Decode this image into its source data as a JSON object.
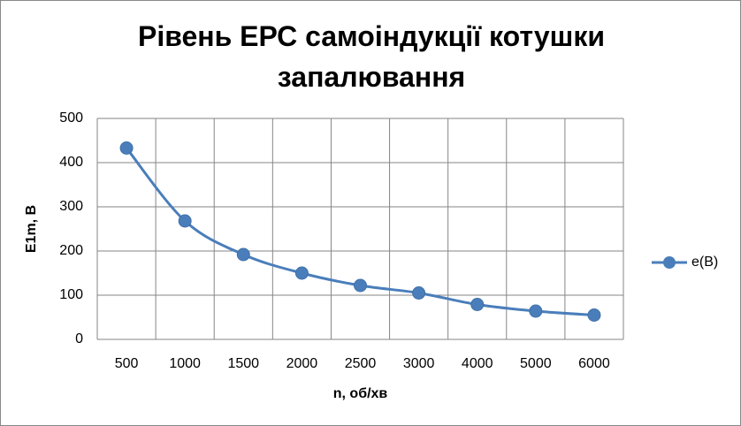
{
  "chart_data": {
    "type": "line",
    "title": "Рівень ЕРС самоіндукції котушки запалювання",
    "x_label": "n, об/хв",
    "y_label": "E1m, В",
    "categories": [
      "500",
      "1000",
      "1500",
      "2000",
      "2500",
      "3000",
      "4000",
      "5000",
      "6000"
    ],
    "series": [
      {
        "name": "e(В)",
        "color": "#4a7ebb",
        "values": [
          433,
          268,
          192,
          150,
          122,
          105,
          79,
          64,
          55
        ]
      }
    ],
    "ylim": [
      0,
      500
    ],
    "yticks": [
      0,
      100,
      200,
      300,
      400,
      500
    ],
    "grid": true,
    "legend": "right",
    "smooth": true
  }
}
